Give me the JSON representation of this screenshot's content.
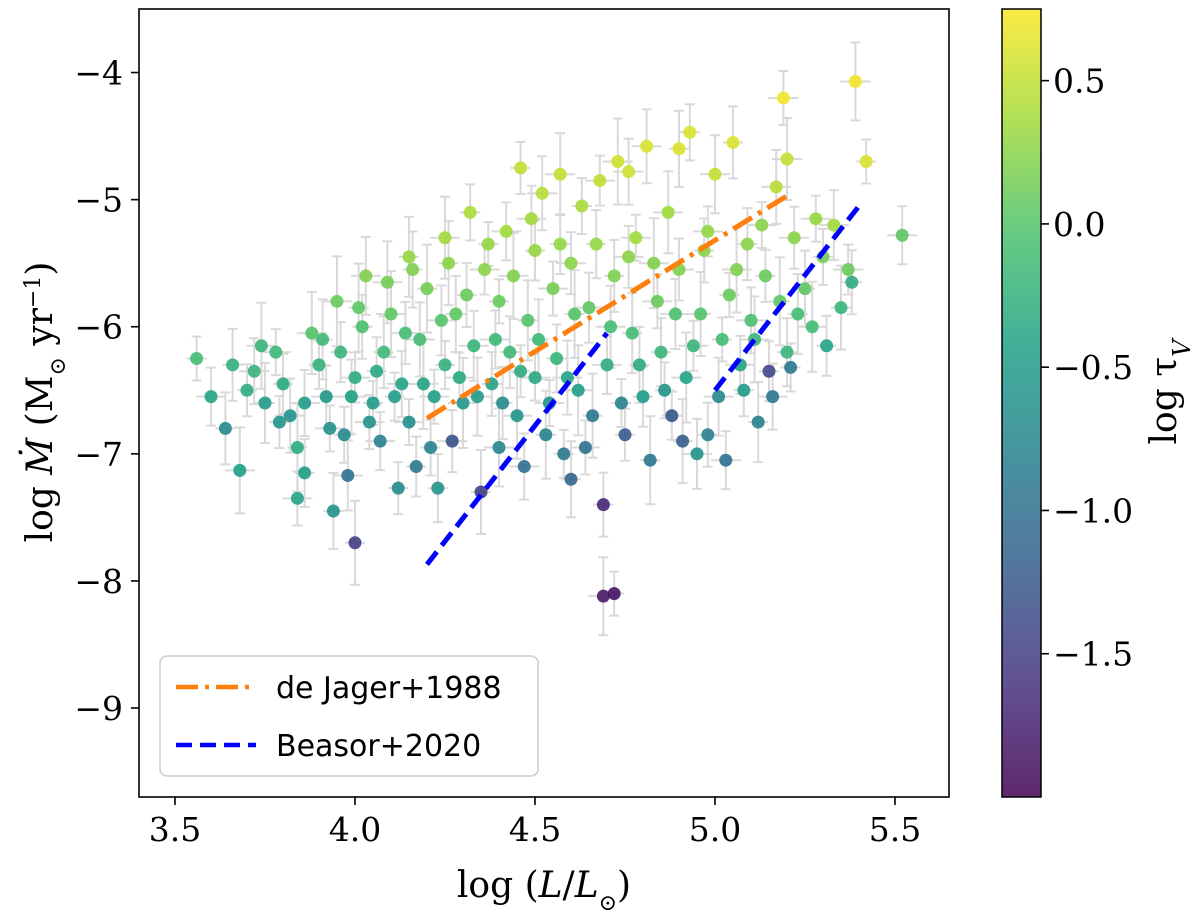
{
  "chart_data": {
    "type": "scatter",
    "xlabel": "log (L/L⊙)",
    "ylabel": "log Ṁ (M⊙ yr⁻¹)",
    "xlim": [
      3.4,
      5.65
    ],
    "ylim": [
      -9.7,
      -3.5
    ],
    "x_ticks": [
      3.5,
      4.0,
      4.5,
      5.0,
      5.5
    ],
    "x_tick_labels": [
      "3.5",
      "4.0",
      "4.5",
      "5.0",
      "5.5"
    ],
    "y_ticks": [
      -9,
      -8,
      -7,
      -6,
      -5,
      -4
    ],
    "y_tick_labels": [
      "−9",
      "−8",
      "−7",
      "−6",
      "−5",
      "−4"
    ],
    "grid": false,
    "colorbar": {
      "label": "log τV",
      "label_main": "log τ",
      "label_sub": "V",
      "range": [
        -2.0,
        0.75
      ],
      "ticks": [
        -1.5,
        -1.0,
        -0.5,
        0.0,
        0.5
      ],
      "tick_labels": [
        "−1.5",
        "−1.0",
        "−0.5",
        "0.0",
        "0.5"
      ],
      "colormap": [
        "#440154",
        "#46327e",
        "#365c8d",
        "#277f8e",
        "#1fa187",
        "#4ac16d",
        "#a0da39",
        "#fde725"
      ]
    },
    "legend": {
      "placement": "lower-left",
      "entries": [
        {
          "label": "de Jager+1988",
          "color": "#ff7f0e",
          "style": "dashdot"
        },
        {
          "label": "Beasor+2020",
          "color": "#0000ff",
          "style": "dashed"
        }
      ]
    },
    "lines": [
      {
        "name": "de Jager+1988",
        "x": [
          4.2,
          5.2
        ],
        "y": [
          -6.72,
          -4.97
        ],
        "color": "#ff7f0e"
      },
      {
        "name": "Beasor+2020",
        "x": [
          4.2,
          4.7
        ],
        "y": [
          -7.87,
          -6.05
        ],
        "color": "#0000ff"
      },
      {
        "name": "Beasor+2020",
        "x": [
          5.0,
          5.4
        ],
        "y": [
          -6.5,
          -5.05
        ],
        "color": "#0000ff"
      }
    ],
    "errorbar_color": "#d9d9d9",
    "points": [
      [
        3.56,
        -6.25,
        -0.1
      ],
      [
        3.6,
        -6.55,
        -0.4
      ],
      [
        3.64,
        -6.8,
        -0.7
      ],
      [
        3.68,
        -7.13,
        -0.45
      ],
      [
        3.7,
        -6.5,
        -0.3
      ],
      [
        3.72,
        -6.35,
        -0.2
      ],
      [
        3.75,
        -6.6,
        -0.5
      ],
      [
        3.78,
        -6.2,
        -0.15
      ],
      [
        3.8,
        -6.45,
        -0.35
      ],
      [
        3.82,
        -6.7,
        -0.6
      ],
      [
        3.84,
        -6.95,
        -0.3
      ],
      [
        3.84,
        -7.35,
        -0.4
      ],
      [
        3.86,
        -7.15,
        -0.45
      ],
      [
        3.88,
        -6.05,
        0.0
      ],
      [
        3.9,
        -6.3,
        -0.25
      ],
      [
        3.92,
        -6.55,
        -0.55
      ],
      [
        3.94,
        -7.45,
        -0.6
      ],
      [
        3.95,
        -5.8,
        0.1
      ],
      [
        3.97,
        -6.85,
        -0.7
      ],
      [
        3.98,
        -7.17,
        -1.0
      ],
      [
        4.0,
        -7.7,
        -1.5
      ],
      [
        4.0,
        -6.4,
        -0.3
      ],
      [
        4.02,
        -6.0,
        -0.05
      ],
      [
        4.03,
        -5.6,
        0.2
      ],
      [
        4.05,
        -6.6,
        -0.5
      ],
      [
        4.07,
        -6.9,
        -0.8
      ],
      [
        4.08,
        -6.2,
        -0.15
      ],
      [
        4.1,
        -5.9,
        0.05
      ],
      [
        4.12,
        -7.27,
        -0.7
      ],
      [
        4.13,
        -6.45,
        -0.4
      ],
      [
        4.15,
        -5.45,
        0.3
      ],
      [
        4.15,
        -6.75,
        -0.65
      ],
      [
        4.17,
        -7.1,
        -0.9
      ],
      [
        4.18,
        -6.1,
        -0.1
      ],
      [
        4.2,
        -5.7,
        0.15
      ],
      [
        4.22,
        -6.55,
        -0.45
      ],
      [
        4.23,
        -7.27,
        -0.6
      ],
      [
        4.25,
        -5.3,
        0.35
      ],
      [
        4.25,
        -6.3,
        -0.25
      ],
      [
        4.27,
        -6.9,
        -1.3
      ],
      [
        4.28,
        -5.9,
        0.05
      ],
      [
        4.3,
        -6.6,
        -0.55
      ],
      [
        4.32,
        -5.1,
        0.4
      ],
      [
        4.33,
        -6.15,
        -0.2
      ],
      [
        4.35,
        -7.3,
        -1.5
      ],
      [
        4.36,
        -5.55,
        0.25
      ],
      [
        4.38,
        -6.45,
        -0.4
      ],
      [
        4.4,
        -6.95,
        -0.75
      ],
      [
        4.4,
        -5.8,
        0.1
      ],
      [
        4.42,
        -5.25,
        0.35
      ],
      [
        4.43,
        -6.2,
        -0.15
      ],
      [
        4.45,
        -6.7,
        -0.6
      ],
      [
        4.46,
        -4.75,
        0.5
      ],
      [
        4.47,
        -7.1,
        -1.0
      ],
      [
        4.48,
        -5.95,
        0.0
      ],
      [
        4.5,
        -6.4,
        -0.35
      ],
      [
        4.5,
        -5.4,
        0.3
      ],
      [
        4.52,
        -4.95,
        0.45
      ],
      [
        4.53,
        -6.85,
        -0.8
      ],
      [
        4.55,
        -5.7,
        0.15
      ],
      [
        4.56,
        -6.25,
        -0.2
      ],
      [
        4.57,
        -4.8,
        0.5
      ],
      [
        4.58,
        -7.0,
        -0.9
      ],
      [
        4.6,
        -5.5,
        0.25
      ],
      [
        4.6,
        -7.2,
        -1.1
      ],
      [
        4.62,
        -6.5,
        -0.45
      ],
      [
        4.63,
        -5.05,
        0.4
      ],
      [
        4.65,
        -5.85,
        0.05
      ],
      [
        4.66,
        -6.7,
        -0.9
      ],
      [
        4.68,
        -4.85,
        0.5
      ],
      [
        4.69,
        -7.4,
        -1.7
      ],
      [
        4.69,
        -8.12,
        -1.8
      ],
      [
        4.72,
        -8.1,
        -1.85
      ],
      [
        4.7,
        -6.3,
        -0.3
      ],
      [
        4.72,
        -5.6,
        0.2
      ],
      [
        4.73,
        -4.7,
        0.55
      ],
      [
        4.75,
        -6.85,
        -1.2
      ],
      [
        4.76,
        -4.78,
        0.55
      ],
      [
        4.77,
        -6.05,
        -0.1
      ],
      [
        4.78,
        -5.3,
        0.35
      ],
      [
        4.8,
        -6.55,
        -0.5
      ],
      [
        4.81,
        -4.58,
        0.6
      ],
      [
        4.82,
        -7.05,
        -0.9
      ],
      [
        4.84,
        -5.8,
        0.1
      ],
      [
        4.85,
        -6.2,
        -0.2
      ],
      [
        4.87,
        -5.1,
        0.35
      ],
      [
        4.88,
        -6.7,
        -1.3
      ],
      [
        4.9,
        -5.55,
        0.2
      ],
      [
        4.9,
        -4.6,
        0.6
      ],
      [
        4.92,
        -6.4,
        -0.4
      ],
      [
        4.93,
        -4.47,
        0.6
      ],
      [
        4.95,
        -7.0,
        -0.6
      ],
      [
        4.96,
        -5.9,
        0.0
      ],
      [
        4.98,
        -5.25,
        0.3
      ],
      [
        4.98,
        -6.85,
        -0.8
      ],
      [
        5.0,
        -4.8,
        0.5
      ],
      [
        5.02,
        -6.1,
        -0.1
      ],
      [
        5.03,
        -7.05,
        -1.0
      ],
      [
        5.05,
        -4.55,
        0.6
      ],
      [
        5.06,
        -5.55,
        0.2
      ],
      [
        5.08,
        -6.5,
        -0.5
      ],
      [
        5.1,
        -5.95,
        -0.05
      ],
      [
        5.12,
        -6.75,
        -0.8
      ],
      [
        5.13,
        -5.2,
        0.25
      ],
      [
        5.15,
        -6.35,
        -1.4
      ],
      [
        5.17,
        -4.9,
        0.45
      ],
      [
        5.18,
        -5.8,
        0.05
      ],
      [
        5.19,
        -4.2,
        0.7
      ],
      [
        5.2,
        -6.2,
        -0.2
      ],
      [
        5.2,
        -4.68,
        0.5
      ],
      [
        5.21,
        -6.32,
        -0.9
      ],
      [
        5.22,
        -5.3,
        0.25
      ],
      [
        5.25,
        -5.7,
        0.05
      ],
      [
        5.27,
        -6.0,
        -0.1
      ],
      [
        5.3,
        -5.45,
        0.15
      ],
      [
        5.33,
        -5.2,
        0.35
      ],
      [
        5.35,
        -5.85,
        -0.2
      ],
      [
        5.37,
        -5.55,
        0.1
      ],
      [
        5.38,
        -5.65,
        -0.3
      ],
      [
        5.39,
        -4.07,
        0.7
      ],
      [
        5.42,
        -4.7,
        0.6
      ],
      [
        5.52,
        -5.28,
        0.05
      ],
      [
        3.66,
        -6.3,
        -0.25
      ],
      [
        3.74,
        -6.15,
        -0.2
      ],
      [
        3.79,
        -6.75,
        -0.55
      ],
      [
        3.86,
        -6.6,
        -0.5
      ],
      [
        3.91,
        -6.1,
        -0.15
      ],
      [
        3.93,
        -6.8,
        -0.65
      ],
      [
        3.96,
        -6.2,
        -0.2
      ],
      [
        3.99,
        -6.55,
        -0.45
      ],
      [
        4.01,
        -5.85,
        0.05
      ],
      [
        4.04,
        -6.75,
        -0.6
      ],
      [
        4.06,
        -6.35,
        -0.35
      ],
      [
        4.09,
        -5.65,
        0.15
      ],
      [
        4.11,
        -6.55,
        -0.5
      ],
      [
        4.14,
        -6.05,
        -0.1
      ],
      [
        4.16,
        -5.55,
        0.2
      ],
      [
        4.19,
        -6.45,
        -0.4
      ],
      [
        4.21,
        -6.95,
        -0.8
      ],
      [
        4.24,
        -5.95,
        0.0
      ],
      [
        4.26,
        -5.5,
        0.25
      ],
      [
        4.29,
        -6.4,
        -0.35
      ],
      [
        4.31,
        -5.75,
        0.1
      ],
      [
        4.34,
        -6.55,
        -0.5
      ],
      [
        4.37,
        -5.35,
        0.3
      ],
      [
        4.39,
        -6.1,
        -0.15
      ],
      [
        4.41,
        -6.6,
        -0.7
      ],
      [
        4.44,
        -5.6,
        0.2
      ],
      [
        4.46,
        -6.35,
        -0.3
      ],
      [
        4.49,
        -5.15,
        0.35
      ],
      [
        4.51,
        -6.1,
        -0.15
      ],
      [
        4.54,
        -6.6,
        -0.6
      ],
      [
        4.57,
        -5.35,
        0.3
      ],
      [
        4.59,
        -6.4,
        -0.4
      ],
      [
        4.61,
        -5.9,
        0.0
      ],
      [
        4.64,
        -6.95,
        -1.0
      ],
      [
        4.67,
        -5.35,
        0.3
      ],
      [
        4.71,
        -6.0,
        -0.1
      ],
      [
        4.74,
        -6.6,
        -0.8
      ],
      [
        4.76,
        -5.45,
        0.25
      ],
      [
        4.79,
        -6.3,
        -0.3
      ],
      [
        4.83,
        -5.5,
        0.2
      ],
      [
        4.86,
        -6.5,
        -0.6
      ],
      [
        4.89,
        -5.9,
        -0.05
      ],
      [
        4.91,
        -6.9,
        -1.2
      ],
      [
        4.94,
        -6.15,
        -0.2
      ],
      [
        4.97,
        -5.4,
        0.25
      ],
      [
        5.01,
        -6.55,
        -0.7
      ],
      [
        5.04,
        -5.75,
        0.1
      ],
      [
        5.07,
        -6.3,
        -0.4
      ],
      [
        5.09,
        -5.35,
        0.25
      ],
      [
        5.11,
        -6.1,
        -0.2
      ],
      [
        5.14,
        -5.6,
        0.1
      ],
      [
        5.16,
        -6.55,
        -0.9
      ],
      [
        5.23,
        -5.9,
        -0.1
      ],
      [
        5.28,
        -5.15,
        0.3
      ],
      [
        5.31,
        -6.15,
        -0.4
      ]
    ]
  }
}
